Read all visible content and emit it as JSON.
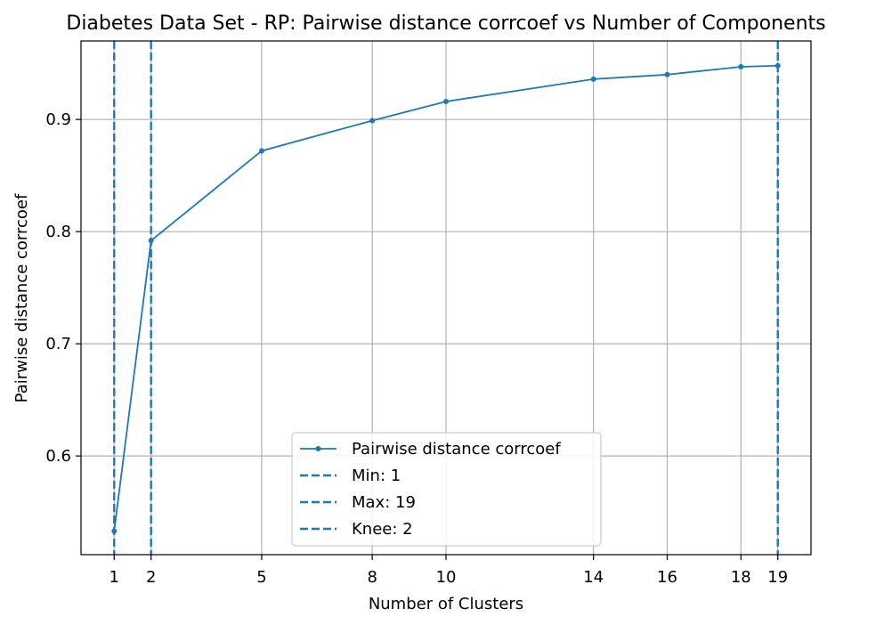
{
  "chart_data": {
    "type": "line",
    "title": "Diabetes Data Set - RP: Pairwise distance corrcoef vs Number of Components",
    "xlabel": "Number of Clusters",
    "ylabel": "Pairwise distance corrcoef",
    "xlim": [
      0.1,
      19.9
    ],
    "ylim": [
      0.512,
      0.97
    ],
    "xticks": [
      1,
      2,
      5,
      8,
      10,
      14,
      16,
      18,
      19
    ],
    "xtick_labels": [
      "1",
      "2",
      "5",
      "8",
      "10",
      "14",
      "16",
      "18",
      "19"
    ],
    "yticks": [
      0.6,
      0.7,
      0.8,
      0.9
    ],
    "ytick_labels": [
      "0.6",
      "0.7",
      "0.8",
      "0.9"
    ],
    "grid": true,
    "series": [
      {
        "name": "Pairwise distance corrcoef",
        "color": "#1f77b4",
        "marker": "dot",
        "x": [
          1,
          2,
          5,
          8,
          10,
          14,
          16,
          18,
          19
        ],
        "y": [
          0.533,
          0.792,
          0.872,
          0.899,
          0.916,
          0.936,
          0.94,
          0.947,
          0.948
        ]
      }
    ],
    "vlines": [
      {
        "label": "Min: 1",
        "x": 1,
        "color": "#1f77b4",
        "style": "dashed"
      },
      {
        "label": "Max: 19",
        "x": 19,
        "color": "#1f77b4",
        "style": "dashed"
      },
      {
        "label": "Knee: 2",
        "x": 2,
        "color": "#1f77b4",
        "style": "dashed"
      }
    ],
    "legend": {
      "placement": "lower-center",
      "entries": [
        "Pairwise distance corrcoef",
        "Min: 1",
        "Max: 19",
        "Knee: 2"
      ]
    }
  }
}
